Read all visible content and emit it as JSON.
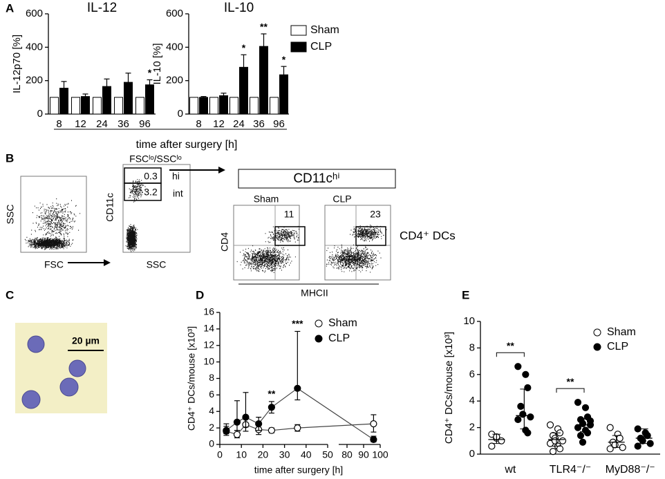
{
  "chart_data": [
    {
      "type": "bar",
      "title": "IL-12",
      "ylabel": "IL-12p70 [%]",
      "xlabel": "time after surgery [h]",
      "categories": [
        "8",
        "12",
        "24",
        "36",
        "96"
      ],
      "series": [
        {
          "color": "#ffffff",
          "values": [
            100,
            100,
            100,
            100,
            100
          ]
        },
        {
          "color": "#000000",
          "values": [
            155,
            105,
            165,
            190,
            175
          ],
          "errors": [
            40,
            15,
            45,
            55,
            30
          ]
        }
      ],
      "significance": [
        null,
        null,
        null,
        null,
        "*"
      ],
      "ylim": [
        0,
        600
      ],
      "yticks": [
        0,
        200,
        400,
        600
      ]
    },
    {
      "type": "bar",
      "title": "IL-10",
      "ylabel": "IL-10 [%]",
      "categories": [
        "8",
        "12",
        "24",
        "36",
        "96"
      ],
      "series": [
        {
          "name": "Sham",
          "color": "#ffffff",
          "values": [
            100,
            100,
            100,
            100,
            100
          ]
        },
        {
          "name": "CLP",
          "color": "#000000",
          "values": [
            100,
            110,
            280,
            405,
            235
          ],
          "errors": [
            5,
            15,
            75,
            75,
            50
          ]
        }
      ],
      "significance": [
        null,
        null,
        "*",
        "**",
        "*"
      ],
      "legend": "outside right",
      "ylim": [
        0,
        600
      ],
      "yticks": [
        0,
        200,
        400,
        600
      ]
    },
    {
      "type": "line",
      "ylabel": "CD4⁺ DCs/mouse [x10³]",
      "xlabel": "time after surgery [h]",
      "x": [
        3,
        8,
        12,
        18,
        24,
        36,
        96
      ],
      "series": [
        {
          "name": "Sham",
          "marker": "open",
          "color": "#000000",
          "values": [
            1.6,
            1.2,
            2.4,
            1.8,
            1.7,
            2.0,
            2.5
          ],
          "error_low": [
            0.5,
            0.4,
            0.8,
            0.6,
            0.3,
            0.4,
            1.0
          ],
          "error_high": [
            0.6,
            0.5,
            0.9,
            0.7,
            0.3,
            0.4,
            1.1
          ]
        },
        {
          "name": "CLP",
          "marker": "filled",
          "color": "#000000",
          "values": [
            1.7,
            2.7,
            3.3,
            2.5,
            4.5,
            6.8,
            0.6
          ],
          "error_low": [
            0.4,
            1.0,
            1.2,
            0.8,
            0.7,
            1.4,
            0.3
          ],
          "error_high": [
            0.8,
            2.6,
            3.0,
            0.8,
            0.7,
            6.9,
            0.4
          ],
          "significance": [
            null,
            null,
            null,
            null,
            "**",
            "***",
            null
          ]
        }
      ],
      "xsegments": [
        [
          0,
          50
        ],
        [
          75,
          100
        ]
      ],
      "xticks": [
        0,
        10,
        20,
        30,
        40,
        50,
        80,
        90,
        100
      ],
      "ylim": [
        0,
        16
      ],
      "yticks": [
        0,
        2,
        4,
        6,
        8,
        10,
        12,
        14,
        16
      ],
      "legend": "upper right"
    },
    {
      "type": "strip",
      "ylabel": "CD4⁺ DCs/mouse [x10³]",
      "categories": [
        "wt",
        "TLR4⁻/⁻",
        "MyD88⁻/⁻"
      ],
      "series": [
        {
          "name": "Sham",
          "marker": "open",
          "color": "#000000",
          "values": [
            [
              1.5,
              1.2,
              1.0,
              0.6,
              1.3
            ],
            [
              2.2,
              1.9,
              1.6,
              1.4,
              1.2,
              1.0,
              0.8,
              0.6,
              0.4,
              0.2,
              1.0
            ],
            [
              2.0,
              1.5,
              1.2,
              0.9,
              0.7,
              0.5,
              0.4
            ]
          ],
          "center": [
            1.1,
            1.1,
            0.9
          ],
          "low": [
            0.8,
            0.6,
            0.5
          ],
          "high": [
            1.5,
            1.6,
            1.4
          ]
        },
        {
          "name": "CLP",
          "marker": "filled",
          "color": "#000000",
          "values": [
            [
              6.6,
              6.0,
              5.0,
              3.6,
              3.0,
              2.8,
              2.6,
              1.8,
              1.6
            ],
            [
              3.9,
              3.5,
              2.8,
              2.6,
              2.3,
              2.2,
              2.0,
              1.8,
              1.6,
              1.4,
              0.9,
              2.5
            ],
            [
              1.9,
              1.6,
              1.4,
              1.2,
              1.0,
              0.8,
              0.6
            ]
          ],
          "center": [
            2.9,
            2.2,
            1.2
          ],
          "low": [
            1.9,
            1.7,
            0.8
          ],
          "high": [
            4.9,
            2.7,
            1.9
          ]
        }
      ],
      "significance": [
        "**",
        "**",
        null
      ],
      "ylim": [
        0,
        10
      ],
      "yticks": [
        0,
        2,
        4,
        6,
        8,
        10
      ],
      "legend": "upper right"
    }
  ],
  "panels": {
    "letters": [
      "A",
      "B",
      "C",
      "D",
      "E"
    ]
  },
  "flow": {
    "ssc1": "SSC",
    "fsc1": "FSC",
    "gate_title": "FSCˡᵒ/SSCˡᵒ",
    "cd11c": "CD11c",
    "hi_value": "0.3",
    "hi": "hi",
    "int_value": "3.2",
    "int": "int",
    "ssc2": "SSC",
    "cd11chi": "CD11cʰⁱ",
    "sham": "Sham",
    "clp": "CLP",
    "sham_value": "11",
    "clp_value": "23",
    "cd4": "CD4",
    "mhcii": "MHCII",
    "cd4_dcs": "CD4⁺ DCs"
  },
  "micrograph": {
    "scale": "20 µm"
  }
}
